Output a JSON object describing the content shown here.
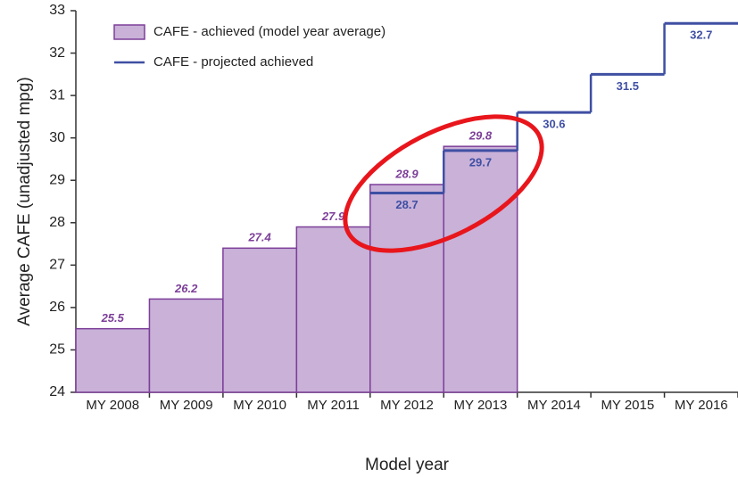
{
  "chart_data": {
    "type": "bar",
    "categories": [
      "MY 2008",
      "MY 2009",
      "MY 2010",
      "MY 2011",
      "MY 2012",
      "MY 2013",
      "MY 2014",
      "MY 2015",
      "MY 2016"
    ],
    "series": [
      {
        "name": "CAFE - achieved (model year average)",
        "type": "bar",
        "color": "#c9b1d8",
        "values": [
          25.5,
          26.2,
          27.4,
          27.9,
          28.9,
          29.8,
          null,
          null,
          null
        ]
      },
      {
        "name": "CAFE - projected achieved",
        "type": "step",
        "color": "#3f4fa3",
        "values": [
          null,
          null,
          null,
          null,
          28.7,
          29.7,
          30.6,
          31.5,
          32.7
        ]
      }
    ],
    "ylabel": "Average CAFE (unadjusted mpg)",
    "xlabel": "Model year",
    "ylim": [
      24,
      33
    ],
    "yticks": [
      24,
      25,
      26,
      27,
      28,
      29,
      30,
      31,
      32,
      33
    ],
    "grid": false
  }
}
